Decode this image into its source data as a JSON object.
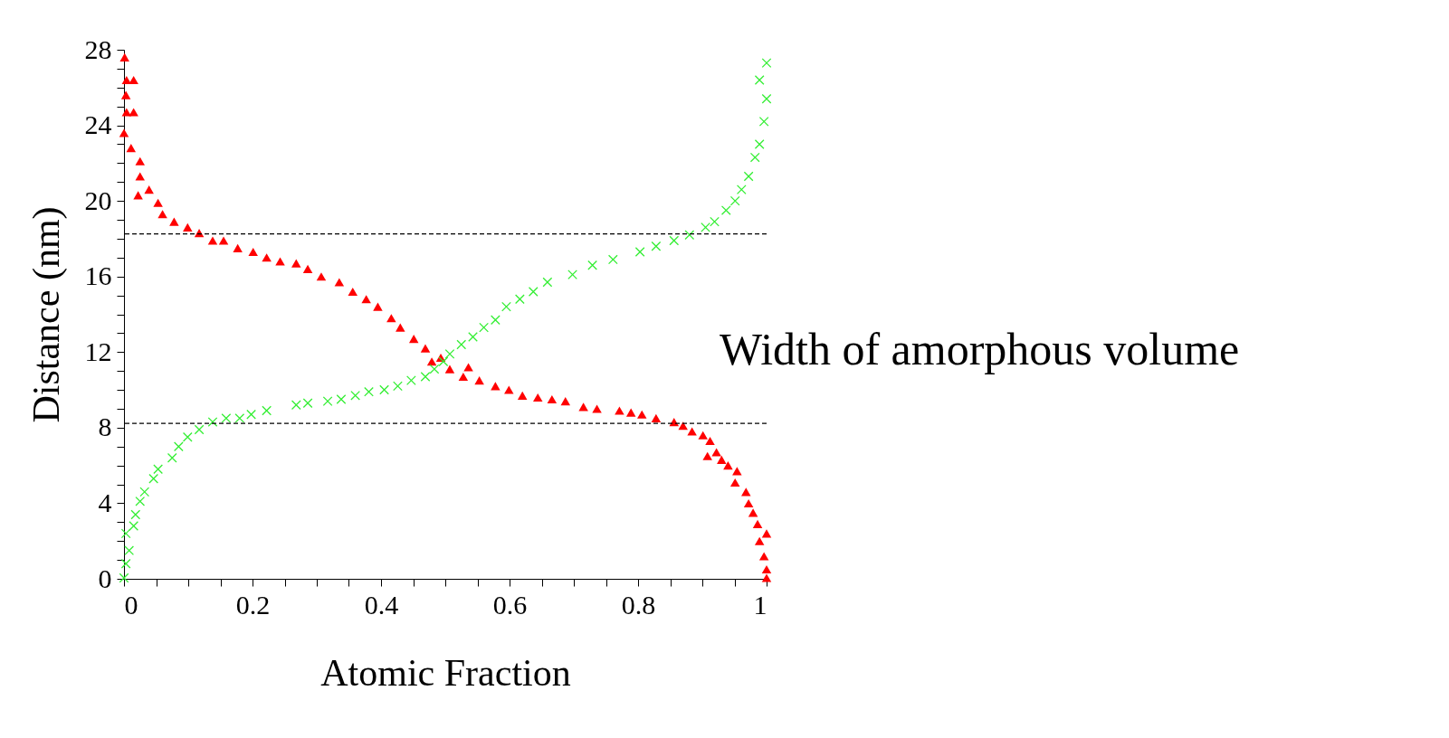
{
  "chart_data": {
    "type": "scatter",
    "xlabel": "Atomic Fraction",
    "ylabel": "Distance (nm)",
    "annotations": [
      "Width of amorphous volume"
    ],
    "xlim": [
      0,
      1
    ],
    "ylim": [
      0,
      28
    ],
    "xticks": [
      0,
      {
        "value": 0.05,
        "label": null
      },
      {
        "value": 0.1,
        "label": null
      },
      {
        "value": 0.15,
        "label": null
      },
      0.2,
      {
        "value": 0.25,
        "label": null
      },
      {
        "value": 0.3,
        "label": null
      },
      {
        "value": 0.35,
        "label": null
      },
      0.4,
      {
        "value": 0.45,
        "label": null
      },
      {
        "value": 0.5,
        "label": null
      },
      {
        "value": 0.55,
        "label": null
      },
      0.6,
      {
        "value": 0.65,
        "label": null
      },
      {
        "value": 0.7,
        "label": null
      },
      {
        "value": 0.75,
        "label": null
      },
      0.8,
      {
        "value": 0.85,
        "label": null
      },
      {
        "value": 0.9,
        "label": null
      },
      {
        "value": 0.95,
        "label": null
      },
      1
    ],
    "yticks": [
      0,
      {
        "value": 1,
        "label": null
      },
      {
        "value": 2,
        "label": null
      },
      {
        "value": 3,
        "label": null
      },
      4,
      {
        "value": 5,
        "label": null
      },
      {
        "value": 6,
        "label": null
      },
      {
        "value": 7,
        "label": null
      },
      8,
      {
        "value": 9,
        "label": null
      },
      {
        "value": 10,
        "label": null
      },
      {
        "value": 11,
        "label": null
      },
      12,
      {
        "value": 13,
        "label": null
      },
      {
        "value": 14,
        "label": null
      },
      {
        "value": 15,
        "label": null
      },
      16,
      {
        "value": 17,
        "label": null
      },
      {
        "value": 18,
        "label": null
      },
      {
        "value": 19,
        "label": null
      },
      20,
      {
        "value": 21,
        "label": null
      },
      {
        "value": 22,
        "label": null
      },
      {
        "value": 23,
        "label": null
      },
      24,
      {
        "value": 25,
        "label": null
      },
      {
        "value": 26,
        "label": null
      },
      {
        "value": 27,
        "label": null
      },
      28
    ],
    "grid": false,
    "ref_lines": [
      {
        "axis": "y",
        "value": 18.25,
        "line_style": "dashed",
        "color": "#000000"
      },
      {
        "axis": "y",
        "value": 8.23,
        "line_style": "dashed",
        "color": "#000000"
      }
    ],
    "series": [
      {
        "color": "#ff0000",
        "marker": "triangle",
        "x": [
          0.001,
          0.004,
          0.015,
          0.003,
          0.004,
          0.015,
          0,
          0.011,
          0.025,
          0.025,
          0.022,
          0.039,
          0.053,
          0.06,
          0.078,
          0.099,
          0.117,
          0.138,
          0.155,
          0.177,
          0.201,
          0.222,
          0.243,
          0.268,
          0.286,
          0.307,
          0.335,
          0.356,
          0.377,
          0.395,
          0.416,
          0.43,
          0.451,
          0.469,
          0.479,
          0.493,
          0.507,
          0.536,
          0.528,
          0.553,
          0.578,
          0.599,
          0.62,
          0.644,
          0.666,
          0.687,
          0.715,
          0.736,
          0.771,
          0.789,
          0.806,
          0.828,
          0.856,
          0.87,
          0.884,
          0.901,
          0.912,
          0.908,
          0.922,
          0.93,
          0.94,
          0.954,
          0.951,
          0.968,
          0.972,
          0.979,
          0.986,
          1.0,
          0.989,
          0.996,
          1.0,
          1.0
        ],
        "values": [
          27.6,
          26.4,
          26.4,
          25.6,
          24.7,
          24.7,
          23.6,
          22.8,
          22.1,
          21.3,
          20.3,
          20.6,
          19.9,
          19.3,
          18.9,
          18.6,
          18.3,
          17.9,
          17.9,
          17.5,
          17.3,
          17.0,
          16.8,
          16.7,
          16.4,
          16.0,
          15.7,
          15.2,
          14.8,
          14.4,
          13.8,
          13.3,
          12.7,
          12.2,
          11.5,
          11.7,
          11.1,
          11.2,
          10.7,
          10.5,
          10.2,
          10.0,
          9.7,
          9.6,
          9.5,
          9.4,
          9.1,
          9.0,
          8.9,
          8.8,
          8.7,
          8.5,
          8.3,
          8.1,
          7.8,
          7.6,
          7.3,
          6.5,
          6.7,
          6.3,
          6.0,
          5.7,
          5.1,
          4.6,
          4.0,
          3.5,
          2.9,
          2.4,
          2.0,
          1.2,
          0.5,
          0.05
        ]
      },
      {
        "color": "#33ee33",
        "marker": "cross",
        "x": [
          0,
          0.003,
          0.008,
          0.003,
          0.015,
          0.018,
          0.025,
          0.032,
          0.046,
          0.053,
          0.075,
          0.085,
          0.099,
          0.117,
          0.138,
          0.159,
          0.18,
          0.198,
          0.222,
          0.268,
          0.286,
          0.317,
          0.338,
          0.36,
          0.381,
          0.405,
          0.426,
          0.447,
          0.469,
          0.483,
          0.497,
          0.507,
          0.525,
          0.543,
          0.56,
          0.578,
          0.595,
          0.616,
          0.637,
          0.659,
          0.698,
          0.729,
          0.761,
          0.803,
          0.828,
          0.856,
          0.88,
          0.905,
          0.919,
          0.937,
          0.951,
          0.961,
          0.972,
          0.982,
          0.989,
          0.996,
          1.0,
          0.989,
          1.0
        ],
        "values": [
          0.05,
          0.8,
          1.5,
          2.4,
          2.8,
          3.4,
          4.1,
          4.6,
          5.3,
          5.8,
          6.4,
          7.0,
          7.5,
          7.9,
          8.3,
          8.5,
          8.5,
          8.7,
          8.9,
          9.2,
          9.3,
          9.4,
          9.5,
          9.7,
          9.9,
          10.0,
          10.2,
          10.5,
          10.7,
          11.1,
          11.5,
          11.9,
          12.4,
          12.8,
          13.3,
          13.7,
          14.4,
          14.8,
          15.2,
          15.7,
          16.1,
          16.6,
          16.9,
          17.3,
          17.6,
          17.9,
          18.2,
          18.6,
          18.9,
          19.5,
          20.0,
          20.6,
          21.3,
          22.3,
          23.0,
          24.2,
          25.4,
          26.4,
          27.3
        ]
      }
    ]
  }
}
